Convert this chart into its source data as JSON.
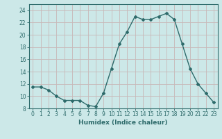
{
  "x": [
    0,
    1,
    2,
    3,
    4,
    5,
    6,
    7,
    8,
    9,
    10,
    11,
    12,
    13,
    14,
    15,
    16,
    17,
    18,
    19,
    20,
    21,
    22,
    23
  ],
  "y": [
    11.5,
    11.5,
    11.0,
    10.0,
    9.3,
    9.3,
    9.3,
    8.5,
    8.3,
    10.5,
    14.5,
    18.5,
    20.5,
    23.0,
    22.5,
    22.5,
    23.0,
    23.5,
    22.5,
    18.5,
    14.5,
    12.0,
    10.5,
    9.0
  ],
  "line_color": "#2e6b6b",
  "marker": "D",
  "marker_size": 2,
  "bg_color": "#cce8e8",
  "grid_color": "#c8b8b8",
  "xlabel": "Humidex (Indice chaleur)",
  "xlim": [
    -0.5,
    23.5
  ],
  "ylim": [
    8,
    25
  ],
  "xticks": [
    0,
    1,
    2,
    3,
    4,
    5,
    6,
    7,
    8,
    9,
    10,
    11,
    12,
    13,
    14,
    15,
    16,
    17,
    18,
    19,
    20,
    21,
    22,
    23
  ],
  "yticks": [
    8,
    10,
    12,
    14,
    16,
    18,
    20,
    22,
    24
  ],
  "tick_label_size": 5.5,
  "xlabel_size": 6.5,
  "line_width": 1.0
}
